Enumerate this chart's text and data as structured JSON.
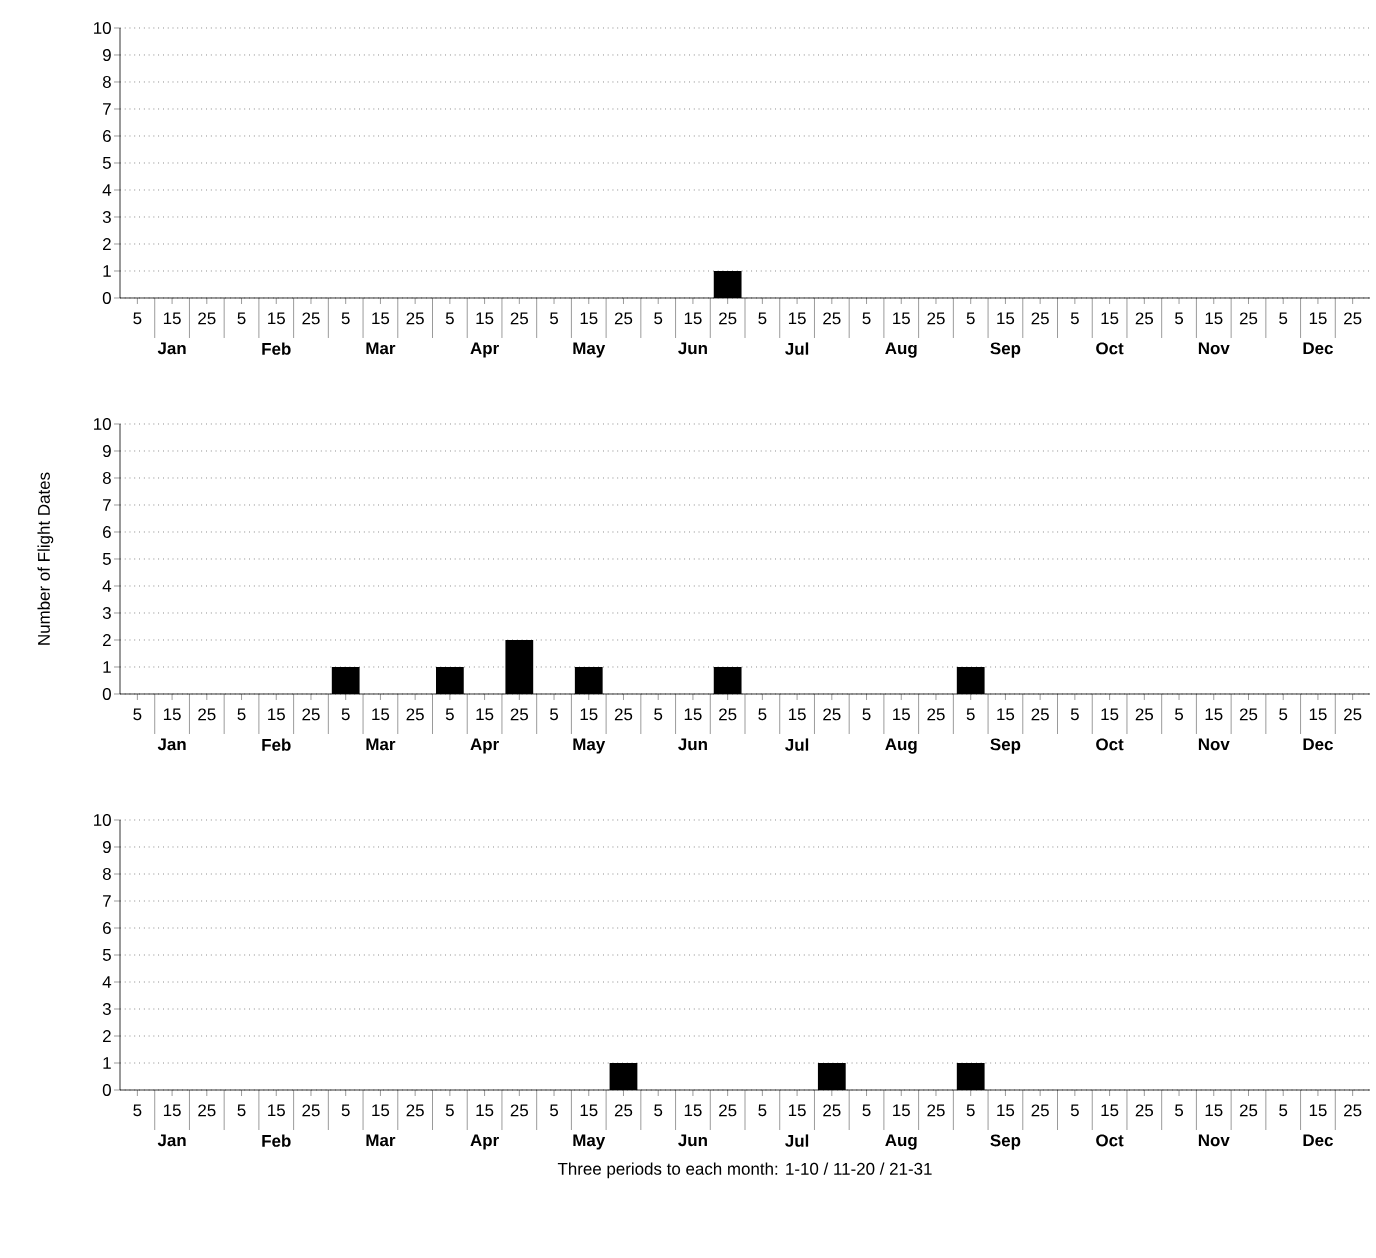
{
  "chart_data": [
    {
      "type": "bar",
      "categories": [
        "5",
        "15",
        "25",
        "5",
        "15",
        "25",
        "5",
        "15",
        "25",
        "5",
        "15",
        "25",
        "5",
        "15",
        "25",
        "5",
        "15",
        "25",
        "5",
        "15",
        "25",
        "5",
        "15",
        "25",
        "5",
        "15",
        "25",
        "5",
        "15",
        "25",
        "5",
        "15",
        "25",
        "5",
        "15",
        "25"
      ],
      "values": [
        0,
        0,
        0,
        0,
        0,
        0,
        0,
        0,
        0,
        0,
        0,
        0,
        0,
        0,
        0,
        0,
        0,
        1,
        0,
        0,
        0,
        0,
        0,
        0,
        0,
        0,
        0,
        0,
        0,
        0,
        0,
        0,
        0,
        0,
        0,
        0
      ],
      "color": "#000000",
      "ylim": [
        0,
        10
      ],
      "yticks": [
        0,
        1,
        2,
        3,
        4,
        5,
        6,
        7,
        8,
        9,
        10
      ],
      "grid": "y",
      "annotations": [
        "Jan",
        "Feb",
        "Mar",
        "Apr",
        "May",
        "Jun",
        "Jul",
        "Aug",
        "Sep",
        "Oct",
        "Nov",
        "Dec"
      ]
    },
    {
      "type": "bar",
      "ylabel": "Number of Flight Dates",
      "categories": [
        "5",
        "15",
        "25",
        "5",
        "15",
        "25",
        "5",
        "15",
        "25",
        "5",
        "15",
        "25",
        "5",
        "15",
        "25",
        "5",
        "15",
        "25",
        "5",
        "15",
        "25",
        "5",
        "15",
        "25",
        "5",
        "15",
        "25",
        "5",
        "15",
        "25",
        "5",
        "15",
        "25",
        "5",
        "15",
        "25"
      ],
      "values": [
        0,
        0,
        0,
        0,
        0,
        0,
        1,
        0,
        0,
        1,
        0,
        2,
        0,
        1,
        0,
        0,
        0,
        1,
        0,
        0,
        0,
        0,
        0,
        0,
        1,
        0,
        0,
        0,
        0,
        0,
        0,
        0,
        0,
        0,
        0,
        0
      ],
      "color": "#000000",
      "ylim": [
        0,
        10
      ],
      "yticks": [
        0,
        1,
        2,
        3,
        4,
        5,
        6,
        7,
        8,
        9,
        10
      ],
      "grid": "y",
      "annotations": [
        "Jan",
        "Feb",
        "Mar",
        "Apr",
        "May",
        "Jun",
        "Jul",
        "Aug",
        "Sep",
        "Oct",
        "Nov",
        "Dec"
      ]
    },
    {
      "type": "bar",
      "xlabel": "Three periods to each month: 1-10 / 11-20 / 21-31",
      "categories": [
        "5",
        "15",
        "25",
        "5",
        "15",
        "25",
        "5",
        "15",
        "25",
        "5",
        "15",
        "25",
        "5",
        "15",
        "25",
        "5",
        "15",
        "25",
        "5",
        "15",
        "25",
        "5",
        "15",
        "25",
        "5",
        "15",
        "25",
        "5",
        "15",
        "25",
        "5",
        "15",
        "25",
        "5",
        "15",
        "25"
      ],
      "values": [
        0,
        0,
        0,
        0,
        0,
        0,
        0,
        0,
        0,
        0,
        0,
        0,
        0,
        0,
        1,
        0,
        0,
        0,
        0,
        0,
        1,
        0,
        0,
        0,
        1,
        0,
        0,
        0,
        0,
        0,
        0,
        0,
        0,
        0,
        0,
        0
      ],
      "color": "#000000",
      "ylim": [
        0,
        10
      ],
      "yticks": [
        0,
        1,
        2,
        3,
        4,
        5,
        6,
        7,
        8,
        9,
        10
      ],
      "grid": "y",
      "annotations": [
        "Jan",
        "Feb",
        "Mar",
        "Apr",
        "May",
        "Jun",
        "Jul",
        "Aug",
        "Sep",
        "Oct",
        "Nov",
        "Dec"
      ]
    }
  ]
}
